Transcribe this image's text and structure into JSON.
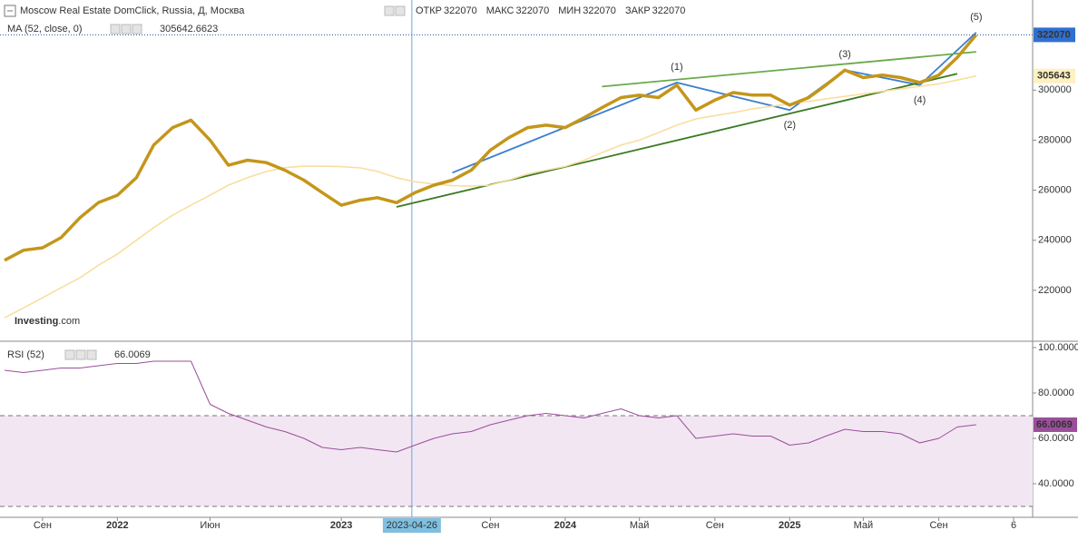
{
  "chart_data": [
    {
      "type": "line",
      "title": "Moscow Real Estate DomClick, Russia, Д, Москва",
      "ohlc": [
        {
          "label": "ОТКР",
          "value": 322070
        },
        {
          "label": "МАКС",
          "value": 322070
        },
        {
          "label": "МИН",
          "value": 322070
        },
        {
          "label": "ЗАКР",
          "value": 322070
        }
      ],
      "indicator": {
        "label": "MA (52, close, 0)",
        "value": 305642.6623
      },
      "logo": [
        "Investing",
        ".com"
      ],
      "crosshair": "2023-04-26",
      "xlim": [
        "2021-07",
        "2026-02"
      ],
      "ylim": [
        200000,
        336000
      ],
      "yticks": [
        220000,
        240000,
        260000,
        280000,
        300000
      ],
      "x": [
        "2021-07",
        "2021-08",
        "2021-09",
        "2021-10",
        "2021-11",
        "2021-12",
        "2022-01",
        "2022-02",
        "2022-03",
        "2022-04",
        "2022-05",
        "2022-06",
        "2022-07",
        "2022-08",
        "2022-09",
        "2022-10",
        "2022-11",
        "2022-12",
        "2023-01",
        "2023-02",
        "2023-03",
        "2023-04",
        "2023-05",
        "2023-06",
        "2023-07",
        "2023-08",
        "2023-09",
        "2023-10",
        "2023-11",
        "2023-12",
        "2024-01",
        "2024-02",
        "2024-03",
        "2024-04",
        "2024-05",
        "2024-06",
        "2024-07",
        "2024-08",
        "2024-09",
        "2024-10",
        "2024-11",
        "2024-12",
        "2025-01",
        "2025-02",
        "2025-03",
        "2025-04",
        "2025-05",
        "2025-06",
        "2025-07",
        "2025-08",
        "2025-09",
        "2025-10",
        "2025-11"
      ],
      "series": [
        {
          "name": "Moscow Real Estate DomClick",
          "color": "#c4961a",
          "values": [
            232000,
            236000,
            237000,
            241000,
            249000,
            255000,
            258000,
            265000,
            278000,
            285000,
            288000,
            280000,
            270000,
            272000,
            271000,
            268000,
            264000,
            259000,
            254000,
            256000,
            257000,
            255000,
            259000,
            262000,
            264000,
            268000,
            276000,
            281000,
            285000,
            286000,
            285000,
            289000,
            293000,
            297000,
            298000,
            297000,
            302000,
            292000,
            296000,
            299000,
            298000,
            298000,
            294000,
            297000,
            302000,
            308000,
            305000,
            306000,
            305000,
            303000,
            306000,
            313000,
            322070
          ]
        },
        {
          "name": "MA (52, close, 0)",
          "color": "#f9dea0",
          "values": [
            209000,
            213000,
            217000,
            221000,
            225000,
            230000,
            234500,
            240000,
            245000,
            250000,
            254000,
            258000,
            262000,
            265000,
            267500,
            269000,
            269600,
            269600,
            269400,
            268900,
            267500,
            265000,
            263400,
            262500,
            261800,
            261600,
            262000,
            264000,
            266500,
            268000,
            269500,
            272000,
            275000,
            278000,
            280000,
            283000,
            286000,
            288500,
            289800,
            291000,
            292500,
            293500,
            294500,
            295500,
            296500,
            297500,
            298500,
            299500,
            300500,
            301500,
            302500,
            304000,
            305642.6623
          ]
        }
      ],
      "price_tags": [
        {
          "value": 322070,
          "label": "322070",
          "color": "#2f6fcf"
        },
        {
          "value": 305642.6623,
          "label": "305643",
          "color": "#fff0c0"
        }
      ],
      "trend_lines": [
        {
          "color": "#3d7fd0",
          "points": [
            [
              "2023-07",
              267000
            ],
            [
              "2024-07",
              303000
            ],
            [
              "2025-01",
              292000
            ],
            [
              "2025-04",
              308000
            ],
            [
              "2025-08",
              302000
            ],
            [
              "2025-11",
              323000
            ]
          ]
        },
        {
          "color": "#6aaa4a",
          "points": [
            [
              "2024-03",
              301400
            ],
            [
              "2025-11",
              315300
            ]
          ]
        },
        {
          "color": "#3a7a22",
          "points": [
            [
              "2023-04",
              253300
            ],
            [
              "2025-10",
              306500
            ]
          ]
        }
      ],
      "annotations": [
        {
          "label": "(1)",
          "x": "2024-07",
          "y": 303000
        },
        {
          "label": "(2)",
          "x": "2025-01",
          "y": 292000
        },
        {
          "label": "(3)",
          "x": "2025-04",
          "y": 308000
        },
        {
          "label": "(4)",
          "x": "2025-08",
          "y": 302000
        },
        {
          "label": "(5)",
          "x": "2025-11",
          "y": 323000
        }
      ]
    },
    {
      "type": "line",
      "title": "RSI (52)",
      "last": 66.0069,
      "crosshair": "2023-04-26",
      "xlim": [
        "2021-07",
        "2026-02"
      ],
      "ylim": [
        25.2,
        102.4
      ],
      "yticks": [
        {
          "value": 40,
          "label": "40.0000"
        },
        {
          "value": 60,
          "label": "60.0000"
        },
        {
          "value": 80,
          "label": "80.0000"
        },
        {
          "value": 100,
          "label": "100.0000"
        }
      ],
      "bands": [
        30,
        70
      ],
      "xticks": [
        {
          "value": "2021-09",
          "label": "Сен"
        },
        {
          "value": "2022-01",
          "label": "2022"
        },
        {
          "value": "2022-06",
          "label": "Июн"
        },
        {
          "value": "2023-01",
          "label": "2023"
        },
        {
          "value": "2023-09",
          "label": "Сен"
        },
        {
          "value": "2024-01",
          "label": "2024"
        },
        {
          "value": "2024-05",
          "label": "Май"
        },
        {
          "value": "2024-09",
          "label": "Сен"
        },
        {
          "value": "2025-01",
          "label": "2025"
        },
        {
          "value": "2025-05",
          "label": "Май"
        },
        {
          "value": "2025-09",
          "label": "Сен"
        },
        {
          "value": "2026-01",
          "label": "6"
        }
      ],
      "x": [
        "2021-07",
        "2021-08",
        "2021-09",
        "2021-10",
        "2021-11",
        "2021-12",
        "2022-01",
        "2022-02",
        "2022-03",
        "2022-04",
        "2022-05",
        "2022-06",
        "2022-07",
        "2022-08",
        "2022-09",
        "2022-10",
        "2022-11",
        "2022-12",
        "2023-01",
        "2023-02",
        "2023-03",
        "2023-04",
        "2023-05",
        "2023-06",
        "2023-07",
        "2023-08",
        "2023-09",
        "2023-10",
        "2023-11",
        "2023-12",
        "2024-01",
        "2024-02",
        "2024-03",
        "2024-04",
        "2024-05",
        "2024-06",
        "2024-07",
        "2024-08",
        "2024-09",
        "2024-10",
        "2024-11",
        "2024-12",
        "2025-01",
        "2025-02",
        "2025-03",
        "2025-04",
        "2025-05",
        "2025-06",
        "2025-07",
        "2025-08",
        "2025-09",
        "2025-10",
        "2025-11"
      ],
      "series": [
        {
          "name": "RSI (52)",
          "color": "#9a4f9a",
          "values": [
            90,
            89,
            90,
            91,
            91,
            92,
            93,
            93,
            94,
            94,
            94,
            75,
            71,
            68,
            65,
            63,
            60,
            56,
            55,
            56,
            55,
            54,
            57,
            60,
            62,
            63,
            66,
            68,
            70,
            71,
            70,
            69,
            71,
            73,
            70,
            69,
            70,
            60,
            61,
            62,
            61,
            61,
            57,
            58,
            61,
            64,
            63,
            63,
            62,
            58,
            60,
            65,
            66.0069
          ]
        }
      ]
    }
  ]
}
